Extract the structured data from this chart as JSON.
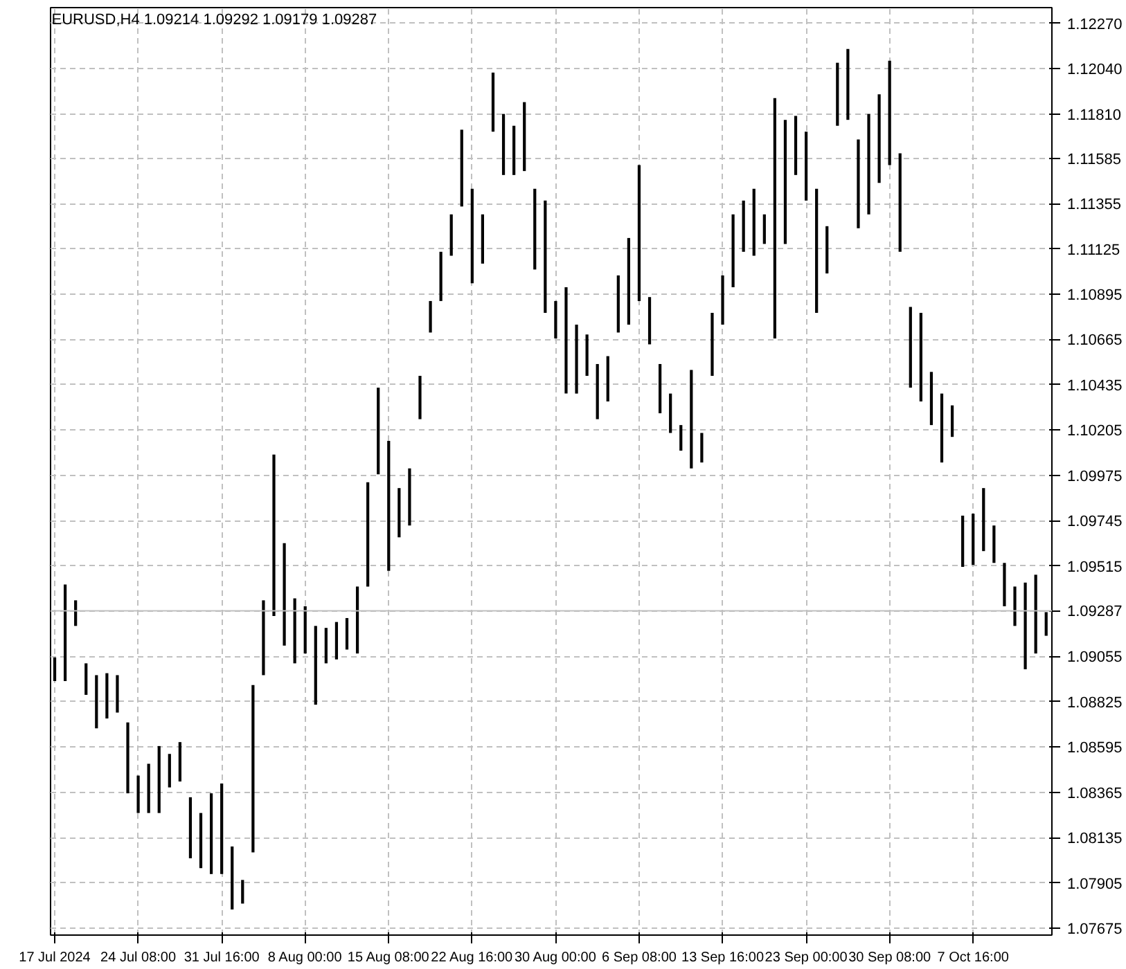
{
  "chart_data": {
    "type": "bar",
    "title": "EURUSD,H4  1.09214 1.09292 1.09179 1.09287",
    "categories": [
      "17 Jul 2024",
      null,
      null,
      null,
      null,
      null,
      null,
      null,
      "24 Jul 08:00",
      null,
      null,
      null,
      null,
      null,
      null,
      null,
      "31 Jul 16:00",
      null,
      null,
      null,
      null,
      null,
      null,
      null,
      "8 Aug 00:00",
      null,
      null,
      null,
      null,
      null,
      null,
      null,
      "15 Aug 08:00",
      null,
      null,
      null,
      null,
      null,
      null,
      null,
      "22 Aug 16:00",
      null,
      null,
      null,
      null,
      null,
      null,
      null,
      "30 Aug 00:00",
      null,
      null,
      null,
      null,
      null,
      null,
      null,
      "6 Sep 08:00",
      null,
      null,
      null,
      null,
      null,
      null,
      null,
      "13 Sep 16:00",
      null,
      null,
      null,
      null,
      null,
      null,
      null,
      "23 Sep 00:00",
      null,
      null,
      null,
      null,
      null,
      null,
      null,
      "30 Sep 08:00",
      null,
      null,
      null,
      null,
      null,
      null,
      null,
      "7 Oct 16:00",
      null,
      null,
      null,
      null,
      null,
      null,
      null
    ],
    "base": [
      1.0893,
      1.0893,
      1.0921,
      1.0886,
      1.0869,
      1.0874,
      1.0877,
      1.0836,
      1.0826,
      1.0826,
      1.0826,
      1.0839,
      1.0842,
      1.0803,
      1.0798,
      1.0795,
      1.0795,
      1.0777,
      1.078,
      1.0806,
      1.0896,
      1.0926,
      1.0911,
      1.0902,
      1.0907,
      1.0881,
      1.0902,
      1.0904,
      1.0909,
      1.0907,
      1.0941,
      1.0998,
      1.0949,
      1.0966,
      1.0972,
      1.1026,
      1.107,
      1.1086,
      1.1109,
      1.1134,
      1.1095,
      1.1105,
      1.1172,
      1.115,
      1.115,
      1.1152,
      1.1102,
      1.108,
      1.1067,
      1.1039,
      1.1039,
      1.1048,
      1.1026,
      1.1035,
      1.107,
      1.1074,
      1.1086,
      1.1064,
      1.1029,
      1.1019,
      1.101,
      1.1001,
      1.1004,
      1.1048,
      1.1074,
      1.1093,
      1.1111,
      1.1109,
      1.1115,
      1.1067,
      1.1115,
      1.115,
      1.1137,
      1.108,
      1.11,
      1.1175,
      1.1178,
      1.1123,
      1.113,
      1.1146,
      1.1155,
      1.1111,
      1.1042,
      1.1035,
      1.1023,
      1.1004,
      1.1017,
      1.0951,
      1.0952,
      1.0959,
      1.0953,
      1.0931,
      1.0921,
      1.0899,
      1.0907,
      1.0916
    ],
    "values": [
      0.0012,
      0.0049,
      0.0013,
      0.0016,
      0.0027,
      0.0023,
      0.0019,
      0.0036,
      0.0019,
      0.0025,
      0.0034,
      0.0017,
      0.002,
      0.0031,
      0.0028,
      0.0041,
      0.0046,
      0.0032,
      0.0012,
      0.0085,
      0.0038,
      0.0082,
      0.0052,
      0.0033,
      0.0024,
      0.004,
      0.0018,
      0.0019,
      0.0016,
      0.0034,
      0.0053,
      0.0044,
      0.0066,
      0.0025,
      0.0029,
      0.0022,
      0.0016,
      0.0025,
      0.0021,
      0.0039,
      0.0048,
      0.0025,
      0.003,
      0.0031,
      0.0025,
      0.0035,
      0.0041,
      0.0057,
      0.0019,
      0.0054,
      0.0035,
      0.0021,
      0.0028,
      0.0023,
      0.0029,
      0.0044,
      0.0069,
      0.0024,
      0.0025,
      0.002,
      0.0013,
      0.005,
      0.0015,
      0.0032,
      0.0025,
      0.0037,
      0.0026,
      0.0034,
      0.0015,
      0.0122,
      0.0063,
      0.003,
      0.0035,
      0.0063,
      0.0024,
      0.0032,
      0.0036,
      0.0045,
      0.0051,
      0.0045,
      0.0053,
      0.005,
      0.0041,
      0.0045,
      0.0027,
      0.0035,
      0.0016,
      0.0026,
      0.0026,
      0.0032,
      0.0019,
      0.0022,
      0.002,
      0.0044,
      0.004,
      0.0012
    ],
    "color": "#000000",
    "ylim": [
      1.0764,
      1.1235
    ],
    "yticks": [
      {
        "value": 1.1227,
        "label": "1.12270"
      },
      {
        "value": 1.1204,
        "label": "1.12040"
      },
      {
        "value": 1.1181,
        "label": "1.11810"
      },
      1.11585,
      1.11355,
      1.11125,
      1.10895,
      1.10665,
      1.10435,
      1.10205,
      1.09975,
      1.09745,
      1.09515,
      {
        "value": 1.09285,
        "label": null
      },
      1.09055,
      1.08825,
      1.08595,
      1.08365,
      1.08135,
      1.07905,
      1.07675
    ],
    "ref_lines": [
      {
        "axis": "y",
        "value": 1.09287,
        "label": "1.09287",
        "color": "#c0c0c0"
      }
    ],
    "grid": true
  }
}
